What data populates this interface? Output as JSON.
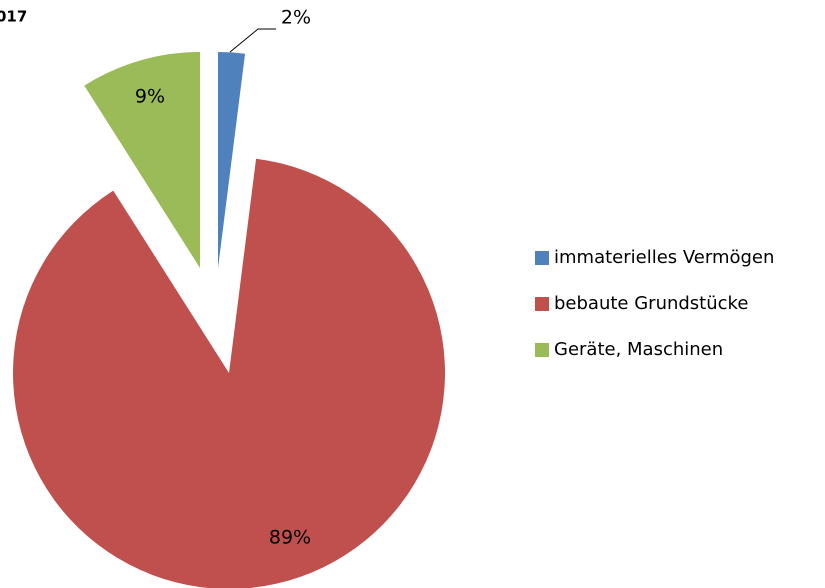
{
  "chart_data": {
    "type": "pie",
    "title": "017",
    "categories": [
      "immaterielles Vermögen",
      "bebaute Grundstücke",
      "Geräte, Maschinen"
    ],
    "values": [
      2,
      89,
      9
    ],
    "value_labels": [
      "2%",
      "89%",
      "9%"
    ],
    "colors": [
      "#4f81bd",
      "#c0504d",
      "#9bbb59"
    ],
    "legend": "right"
  }
}
